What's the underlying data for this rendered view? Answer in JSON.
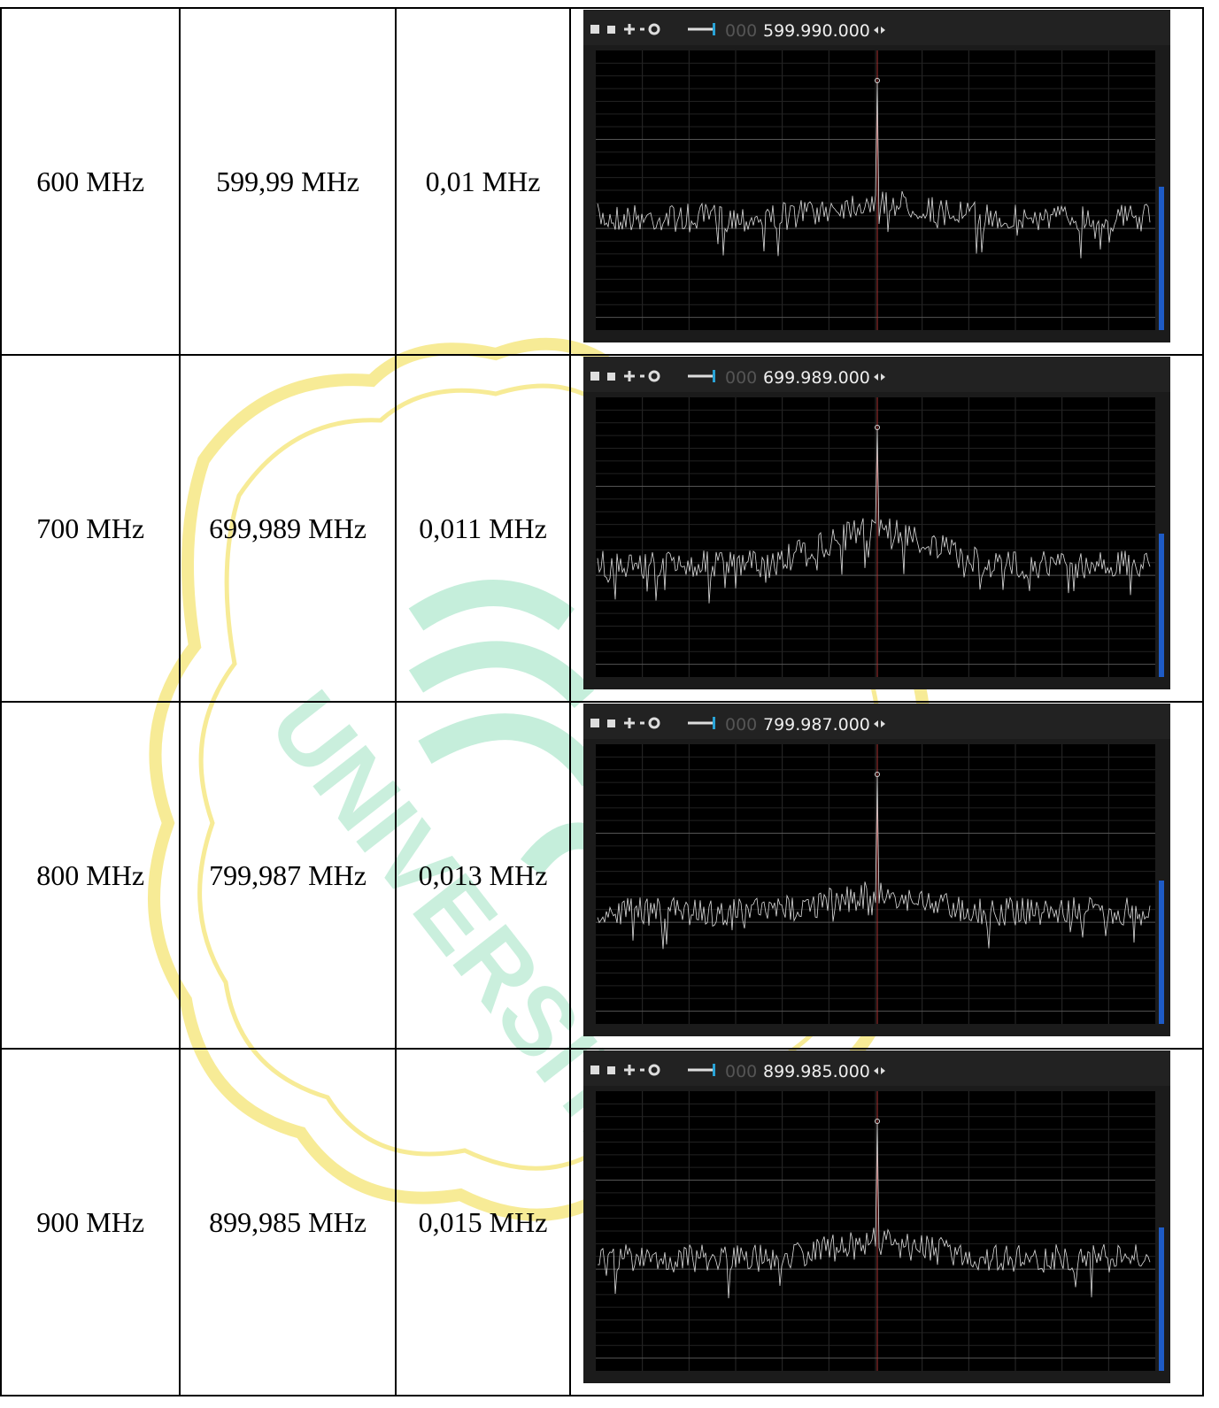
{
  "watermark": "UNIVERSITAS N",
  "table": {
    "rows": [
      {
        "input": "600 MHz",
        "measured": "599,99 MHz",
        "error": "0,01 MHz",
        "display": {
          "prefix": "000",
          "freq": "599.990.000"
        }
      },
      {
        "input": "700 MHz",
        "measured": "699,989 MHz",
        "error": "0,011 MHz",
        "display": {
          "prefix": "000",
          "freq": "699.989.000"
        }
      },
      {
        "input": "800 MHz",
        "measured": "799,987 MHz",
        "error": "0,013 MHz",
        "display": {
          "prefix": "000",
          "freq": "799.987.000"
        }
      },
      {
        "input": "900 MHz",
        "measured": "899,985 MHz",
        "error": "0,015 MHz",
        "display": {
          "prefix": "000",
          "freq": "899.985.000"
        }
      }
    ]
  }
}
